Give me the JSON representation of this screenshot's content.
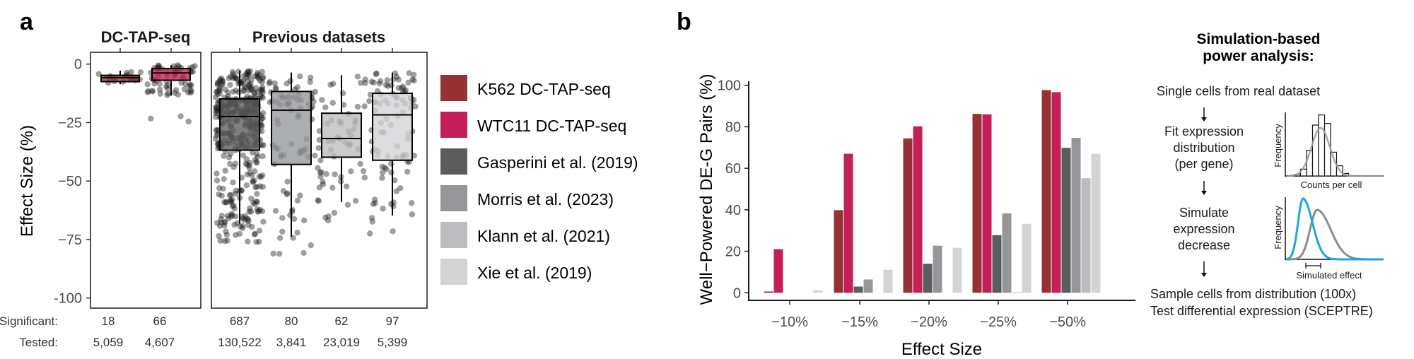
{
  "panel_a": {
    "letter": "a",
    "facets": [
      {
        "title": "DC-TAP-seq"
      },
      {
        "title": "Previous datasets"
      }
    ],
    "row_labels": {
      "significant": "Significant:",
      "tested": "Tested:"
    }
  },
  "panel_b": {
    "letter": "b"
  },
  "legend": {
    "items": [
      {
        "label": "K562 DC-TAP-seq",
        "color": "#963135"
      },
      {
        "label": "WTC11 DC-TAP-seq",
        "color": "#c41f58"
      },
      {
        "label": "Gasperini et al. (2019)",
        "color": "#5b5c5e"
      },
      {
        "label": "Morris et al. (2023)",
        "color": "#95969a"
      },
      {
        "label": "Klann et al. (2021)",
        "color": "#bcbdbf"
      },
      {
        "label": "Xie et al. (2019)",
        "color": "#d3d4d6"
      }
    ]
  },
  "diagram": {
    "title_line1": "Simulation-based",
    "title_line2": "power analysis:",
    "step1": "Single cells from real dataset",
    "step2_lines": [
      "Fit expression",
      "distribution",
      "(per gene)"
    ],
    "step3_lines": [
      "Simulate",
      "expression",
      "decrease"
    ],
    "step4_lines": [
      "Sample cells from distribution (100x)",
      "Test differential expression (SCEPTRE)"
    ],
    "hist_ylabel": "Frequency",
    "hist_xlabel": "Counts per cell",
    "sim_ylabel": "Frequency",
    "sim_xlabel": "Simulated effect",
    "sim_colors": {
      "simulated": "#1aa7e0",
      "original": "#8c8c8c"
    }
  },
  "chart_data": [
    {
      "type": "box",
      "title": "Effect sizes of significant enhancer-gene pairs",
      "ylabel": "Effect Size (%)",
      "ylim": [
        -105,
        5
      ],
      "yticks": [
        0,
        -25,
        -50,
        -75,
        -100
      ],
      "ytick_labels": [
        "0",
        "−25",
        "−50",
        "−75",
        "-100"
      ],
      "facets": [
        "DC-TAP-seq",
        "Previous datasets"
      ],
      "groups": [
        {
          "name": "K562 DC-TAP-seq",
          "facet": 0,
          "color": "#963135",
          "q1": -7.5,
          "median": -5.8,
          "q3": -4.8,
          "whisker_low": -8.6,
          "whisker_high": -2.8,
          "significant": "18",
          "tested": "5,059"
        },
        {
          "name": "WTC11 DC-TAP-seq",
          "facet": 0,
          "color": "#c41f58",
          "q1": -6.9,
          "median": -3.8,
          "q3": -1.9,
          "whisker_low": -13.5,
          "whisker_high": -0.5,
          "significant": "66",
          "tested": "4,607"
        },
        {
          "name": "Gasperini et al. (2019)",
          "facet": 1,
          "color": "#5b5c5e",
          "q1": -36.8,
          "median": -22.4,
          "q3": -14.9,
          "whisker_low": -68.2,
          "whisker_high": -2.8,
          "significant": "687",
          "tested": "130,522"
        },
        {
          "name": "Morris et al. (2023)",
          "facet": 1,
          "color": "#95969a",
          "q1": -42.9,
          "median": -19.7,
          "q3": -11.7,
          "whisker_low": -73.8,
          "whisker_high": -3.6,
          "significant": "80",
          "tested": "3,841"
        },
        {
          "name": "Klann et al. (2021)",
          "facet": 1,
          "color": "#bcbdbf",
          "q1": -39.8,
          "median": -31.8,
          "q3": -21.0,
          "whisker_low": -59.0,
          "whisker_high": -4.8,
          "significant": "62",
          "tested": "23,019"
        },
        {
          "name": "Xie et al. (2019)",
          "facet": 1,
          "color": "#d3d4d6",
          "q1": -41.1,
          "median": -21.7,
          "q3": -12.5,
          "whisker_low": -64.7,
          "whisker_high": -3.6,
          "significant": "97",
          "tested": "5,399"
        }
      ]
    },
    {
      "type": "bar",
      "title": "",
      "xlabel": "Effect Size",
      "ylabel": "Well−Powered DE-G Pairs (%)",
      "ylim": [
        0,
        100
      ],
      "yticks": [
        0,
        20,
        40,
        60,
        80,
        100
      ],
      "categories": [
        "−10%",
        "−15%",
        "−20%",
        "−25%",
        "−50%"
      ],
      "series": [
        {
          "name": "K562 DC-TAP-seq",
          "color": "#963135",
          "values": [
            0.6,
            39.8,
            74.4,
            86.2,
            97.7
          ]
        },
        {
          "name": "WTC11 DC-TAP-seq",
          "color": "#c41f58",
          "values": [
            21.0,
            67.0,
            80.2,
            86.0,
            96.7
          ]
        },
        {
          "name": "Gasperini et al. (2019)",
          "color": "#5b5c5e",
          "values": [
            0.0,
            3.0,
            14.0,
            27.8,
            69.9
          ]
        },
        {
          "name": "Morris et al. (2023)",
          "color": "#95969a",
          "values": [
            0.0,
            6.4,
            22.7,
            38.3,
            74.7
          ]
        },
        {
          "name": "Klann et al. (2021)",
          "color": "#bcbdbf",
          "values": [
            0.0,
            0.0,
            0.0,
            0.2,
            55.2
          ]
        },
        {
          "name": "Xie et al. (2019)",
          "color": "#d3d4d6",
          "values": [
            1.2,
            11.1,
            21.7,
            33.2,
            67.0
          ]
        }
      ],
      "legend": "left-of-chart"
    }
  ]
}
